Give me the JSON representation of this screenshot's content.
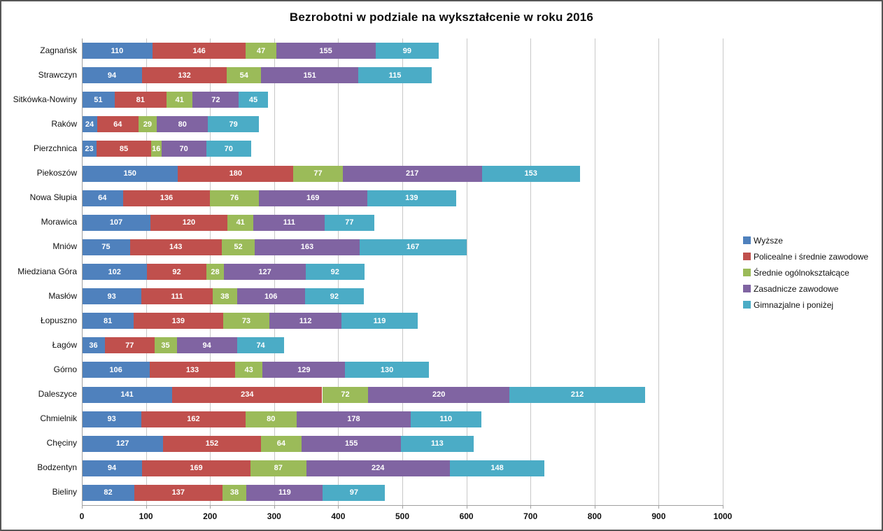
{
  "title": "Bezrobotni w podziale na wykształcenie w roku 2016",
  "chart_data": {
    "type": "bar",
    "orientation": "horizontal",
    "stacked": true,
    "grid": true,
    "data_labels": true,
    "data_label_color": "#ffffff",
    "legend_position": "right",
    "xlim": [
      0,
      1000
    ],
    "x_ticks": [
      0,
      100,
      200,
      300,
      400,
      500,
      600,
      700,
      800,
      900,
      1000
    ],
    "categories_top_to_bottom": [
      "Zagnańsk",
      "Strawczyn",
      "Sitkówka-Nowiny",
      "Raków",
      "Pierzchnica",
      "Piekoszów",
      "Nowa Słupia",
      "Morawica",
      "Mniów",
      "Miedziana Góra",
      "Masłów",
      "Łopuszno",
      "Łagów",
      "Górno",
      "Daleszyce",
      "Chmielnik",
      "Chęciny",
      "Bodzentyn",
      "Bieliny"
    ],
    "series": [
      {
        "name": "Wyższe",
        "color": "#4F81BD",
        "values": [
          110,
          94,
          51,
          24,
          23,
          150,
          64,
          107,
          75,
          102,
          93,
          81,
          36,
          106,
          141,
          93,
          127,
          94,
          82
        ]
      },
      {
        "name": "Policealne i średnie zawodowe",
        "color": "#C0504D",
        "values": [
          146,
          132,
          81,
          64,
          85,
          180,
          136,
          120,
          143,
          92,
          111,
          139,
          77,
          133,
          234,
          162,
          152,
          169,
          137
        ]
      },
      {
        "name": "Średnie ogólnokształcące",
        "color": "#9BBB59",
        "values": [
          47,
          54,
          41,
          29,
          16,
          77,
          76,
          41,
          52,
          28,
          38,
          73,
          35,
          43,
          72,
          80,
          64,
          87,
          38
        ]
      },
      {
        "name": "Zasadnicze zawodowe",
        "color": "#8064A2",
        "values": [
          155,
          151,
          72,
          80,
          70,
          217,
          169,
          111,
          163,
          127,
          106,
          112,
          94,
          129,
          220,
          178,
          155,
          224,
          119
        ]
      },
      {
        "name": "Gimnazjalne i poniżej",
        "color": "#4BACC6",
        "values": [
          99,
          115,
          45,
          79,
          70,
          153,
          139,
          77,
          167,
          92,
          92,
          119,
          74,
          130,
          212,
          110,
          113,
          148,
          97
        ]
      }
    ],
    "colors": {
      "gridline": "#c8c8c8",
      "axis": "#a0a0a0",
      "frame_border": "#565656"
    }
  }
}
